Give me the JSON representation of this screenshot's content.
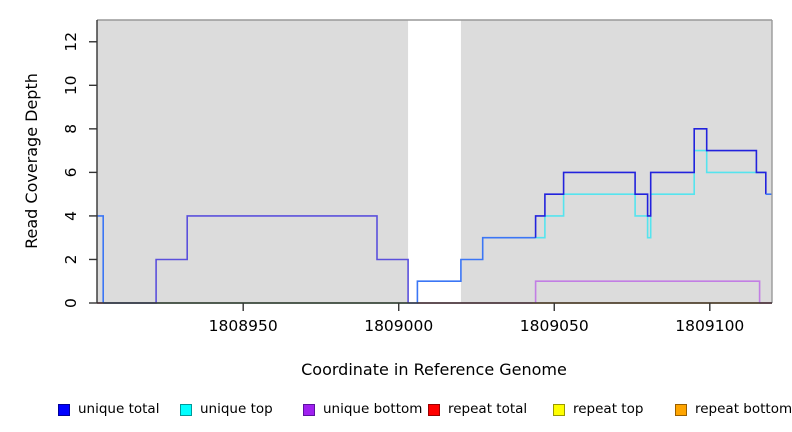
{
  "chart_data": {
    "type": "line",
    "subtype": "step-coverage-plot",
    "title": "",
    "xlabel": "Coordinate in Reference Genome",
    "ylabel": "Read Coverage Depth",
    "xlim": [
      1808903,
      1809120
    ],
    "ylim": [
      0,
      13
    ],
    "x_ticks": [
      1808950,
      1809000,
      1809050,
      1809100
    ],
    "y_ticks": [
      0,
      2,
      4,
      6,
      8,
      10,
      12
    ],
    "grid": false,
    "plot_background": "#DCDCDC",
    "no_data_band": [
      1809003,
      1809020
    ],
    "axis_color": "#333333",
    "box_color": "#999999",
    "legend": [
      {
        "id": "unique-total",
        "label": "unique total",
        "fill": "#0000FF",
        "border": "#000099"
      },
      {
        "id": "unique-top",
        "label": "unique top",
        "fill": "#00FFFF",
        "border": "#009999"
      },
      {
        "id": "unique-bottom",
        "label": "unique bottom",
        "fill": "#A020F0",
        "border": "#5C12A0"
      },
      {
        "id": "repeat-total",
        "label": "repeat total",
        "fill": "#FF0000",
        "border": "#990000"
      },
      {
        "id": "repeat-top",
        "label": "repeat top",
        "fill": "#FFFF00",
        "border": "#999900"
      },
      {
        "id": "repeat-bottom",
        "label": "repeat bottom",
        "fill": "#FFA500",
        "border": "#995F00"
      }
    ],
    "series": {
      "note": "step values: [x_start, depth], depth holds until next x_start; range ends at 1809120",
      "unique_total_steps": [
        [
          1808903,
          4
        ],
        [
          1808905,
          0
        ],
        [
          1808922,
          2
        ],
        [
          1808932,
          4
        ],
        [
          1808993,
          2
        ],
        [
          1809003,
          0
        ],
        [
          1809006,
          1
        ],
        [
          1809020,
          2
        ],
        [
          1809027,
          3
        ],
        [
          1809044,
          4
        ],
        [
          1809047,
          5
        ],
        [
          1809053,
          6
        ],
        [
          1809076,
          5
        ],
        [
          1809080,
          4
        ],
        [
          1809081,
          6
        ],
        [
          1809095,
          8
        ],
        [
          1809099,
          7
        ],
        [
          1809115,
          6
        ],
        [
          1809118,
          5
        ]
      ],
      "unique_top_steps": [
        [
          1808903,
          4
        ],
        [
          1808905,
          0
        ],
        [
          1809006,
          1
        ],
        [
          1809020,
          2
        ],
        [
          1809027,
          3
        ],
        [
          1809044,
          3
        ],
        [
          1809047,
          4
        ],
        [
          1809053,
          5
        ],
        [
          1809076,
          4
        ],
        [
          1809080,
          3
        ],
        [
          1809081,
          5
        ],
        [
          1809095,
          7
        ],
        [
          1809099,
          6
        ],
        [
          1809118,
          5
        ]
      ],
      "unique_bottom_steps": [
        [
          1808903,
          0
        ],
        [
          1808922,
          2
        ],
        [
          1808932,
          4
        ],
        [
          1808993,
          2
        ],
        [
          1809003,
          0
        ],
        [
          1809044,
          1
        ],
        [
          1809116,
          0
        ]
      ],
      "repeat_total_steps": [
        [
          1808903,
          0
        ]
      ],
      "repeat_top_steps": [
        [
          1808903,
          0
        ]
      ],
      "repeat_bottom_steps": [
        [
          1808903,
          0
        ]
      ]
    },
    "visible_lines": [
      {
        "name": "baseline-overlap-green",
        "color": "#67BF6C",
        "points": [
          [
            1808905,
            0
          ],
          [
            1809003,
            0
          ]
        ]
      },
      {
        "name": "repeat-total-line-left",
        "color": "#E0507E",
        "points": [
          [
            1808903,
            0
          ],
          [
            1808905,
            0
          ]
        ]
      },
      {
        "name": "repeat-total-line-mid",
        "color": "#E0507E",
        "points": [
          [
            1809006,
            0
          ],
          [
            1809043,
            0
          ]
        ]
      },
      {
        "name": "repeat-total-line-right",
        "color": "#E0507E",
        "points": [
          [
            1809116,
            0
          ],
          [
            1809120,
            0
          ]
        ]
      },
      {
        "name": "repeat-bottom-line",
        "color": "#FF9E1B",
        "points": [
          [
            1809043,
            0
          ],
          [
            1809116,
            0
          ]
        ]
      },
      {
        "name": "unique-bottom-line",
        "color": "#C27EE4",
        "points": [
          [
            1809044,
            0
          ],
          [
            1809044,
            1
          ],
          [
            1809116,
            1
          ],
          [
            1809116,
            0
          ]
        ]
      },
      {
        "name": "unique-bottom-total-overlap-line",
        "color": "#5B50DC",
        "points": [
          [
            1808905,
            0
          ],
          [
            1808922,
            0
          ],
          [
            1808922,
            2
          ],
          [
            1808932,
            2
          ],
          [
            1808932,
            4
          ],
          [
            1808993,
            4
          ],
          [
            1808993,
            2
          ],
          [
            1809003,
            2
          ],
          [
            1809003,
            0
          ]
        ]
      },
      {
        "name": "unique-top-line",
        "color": "#55E4EE",
        "points": [
          [
            1809044,
            3
          ],
          [
            1809047,
            3
          ],
          [
            1809047,
            4
          ],
          [
            1809053,
            4
          ],
          [
            1809053,
            5
          ],
          [
            1809076,
            5
          ],
          [
            1809076,
            4
          ],
          [
            1809080,
            4
          ],
          [
            1809080,
            3
          ],
          [
            1809081,
            3
          ],
          [
            1809081,
            5
          ],
          [
            1809095,
            5
          ],
          [
            1809095,
            7
          ],
          [
            1809099,
            7
          ],
          [
            1809099,
            6
          ],
          [
            1809118,
            6
          ]
        ]
      },
      {
        "name": "unique-total-top-overlap-spike",
        "color": "#3B76F5",
        "points": [
          [
            1808903,
            4
          ],
          [
            1808905,
            4
          ],
          [
            1808905,
            0
          ]
        ]
      },
      {
        "name": "unique-total-top-overlap-mid",
        "color": "#3B76F5",
        "points": [
          [
            1809003,
            0
          ],
          [
            1809006,
            0
          ],
          [
            1809006,
            1
          ],
          [
            1809020,
            1
          ],
          [
            1809020,
            2
          ],
          [
            1809027,
            2
          ],
          [
            1809027,
            3
          ],
          [
            1809044,
            3
          ]
        ]
      },
      {
        "name": "unique-total-line",
        "color": "#2222DD",
        "points": [
          [
            1809044,
            3
          ],
          [
            1809044,
            4
          ],
          [
            1809047,
            4
          ],
          [
            1809047,
            5
          ],
          [
            1809053,
            5
          ],
          [
            1809053,
            6
          ],
          [
            1809076,
            6
          ],
          [
            1809076,
            5
          ],
          [
            1809080,
            5
          ],
          [
            1809080,
            4
          ],
          [
            1809081,
            4
          ],
          [
            1809081,
            6
          ],
          [
            1809095,
            6
          ],
          [
            1809095,
            8
          ],
          [
            1809099,
            8
          ],
          [
            1809099,
            7
          ],
          [
            1809115,
            7
          ],
          [
            1809115,
            6
          ],
          [
            1809118,
            6
          ],
          [
            1809118,
            5
          ]
        ]
      },
      {
        "name": "unique-total-top-overlap-end",
        "color": "#3B76F5",
        "points": [
          [
            1809118,
            5
          ],
          [
            1809120,
            5
          ]
        ]
      }
    ]
  }
}
